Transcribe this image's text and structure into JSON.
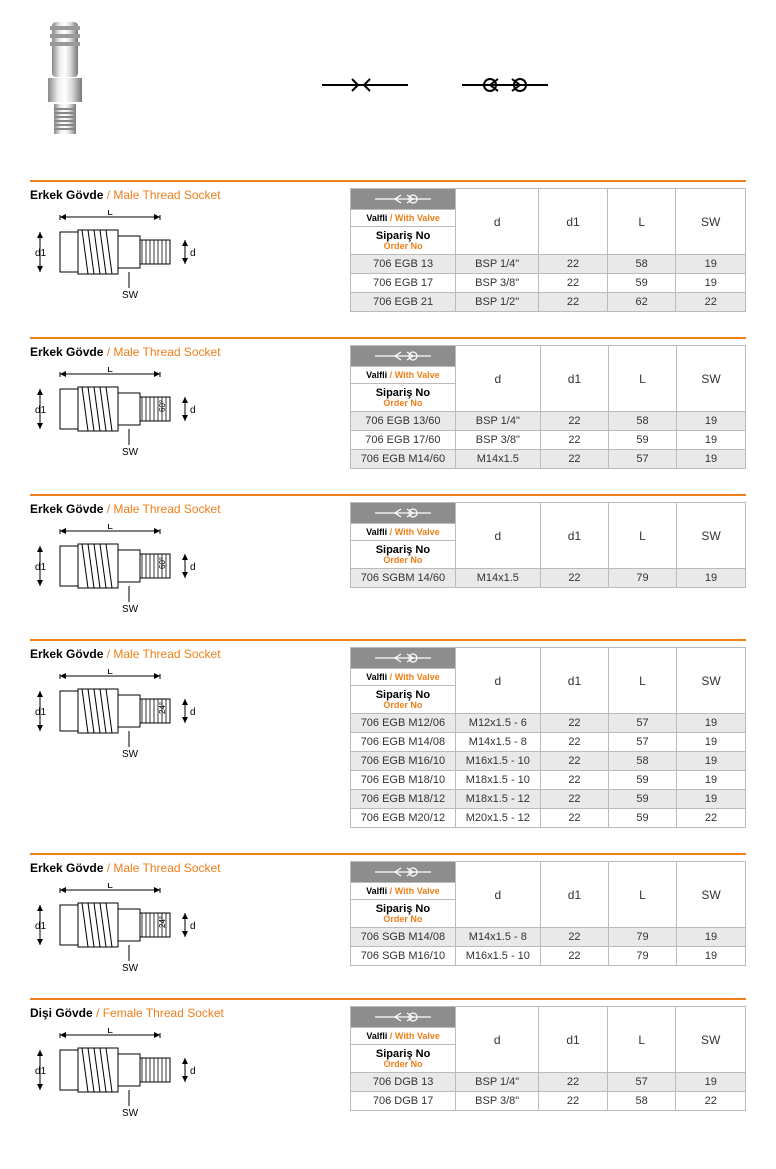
{
  "colors": {
    "accent": "#ef7f1a",
    "header_bg": "#8d8d8d",
    "row_alt": "#e9e9e9",
    "border": "#bbbbbb"
  },
  "labels": {
    "valve_tr": "Valfli",
    "valve_sep": " / ",
    "valve_en": "With Valve",
    "siparis_tr": "Sipariş No",
    "siparis_en": "Order No",
    "cols": [
      "d",
      "d1",
      "L",
      "SW"
    ]
  },
  "sections": [
    {
      "title_tr": "Erkek Gövde",
      "title_en": "Male Thread Socket",
      "diagram_angle": "",
      "rows": [
        [
          "706 EGB 13",
          "BSP 1/4\"",
          "22",
          "58",
          "19"
        ],
        [
          "706 EGB 17",
          "BSP 3/8\"",
          "22",
          "59",
          "19"
        ],
        [
          "706 EGB 21",
          "BSP 1/2\"",
          "22",
          "62",
          "22"
        ]
      ]
    },
    {
      "title_tr": "Erkek Gövde",
      "title_en": "Male Thread Socket",
      "diagram_angle": "60°",
      "rows": [
        [
          "706 EGB 13/60",
          "BSP 1/4\"",
          "22",
          "58",
          "19"
        ],
        [
          "706 EGB 17/60",
          "BSP 3/8\"",
          "22",
          "59",
          "19"
        ],
        [
          "706 EGB M14/60",
          "M14x1.5",
          "22",
          "57",
          "19"
        ]
      ]
    },
    {
      "title_tr": "Erkek Gövde",
      "title_en": "Male Thread Socket",
      "diagram_angle": "60°",
      "rows": [
        [
          "706 SGBM 14/60",
          "M14x1.5",
          "22",
          "79",
          "19"
        ]
      ]
    },
    {
      "title_tr": "Erkek Gövde",
      "title_en": "Male Thread Socket",
      "diagram_angle": "24°",
      "rows": [
        [
          "706 EGB M12/06",
          "M12x1.5 - 6",
          "22",
          "57",
          "19"
        ],
        [
          "706 EGB M14/08",
          "M14x1.5 - 8",
          "22",
          "57",
          "19"
        ],
        [
          "706 EGB M16/10",
          "M16x1.5 - 10",
          "22",
          "58",
          "19"
        ],
        [
          "706 EGB M18/10",
          "M18x1.5 - 10",
          "22",
          "59",
          "19"
        ],
        [
          "706 EGB M18/12",
          "M18x1.5 - 12",
          "22",
          "59",
          "19"
        ],
        [
          "706 EGB M20/12",
          "M20x1.5 - 12",
          "22",
          "59",
          "22"
        ]
      ]
    },
    {
      "title_tr": "Erkek Gövde",
      "title_en": "Male Thread Socket",
      "diagram_angle": "24°",
      "rows": [
        [
          "706 SGB M14/08",
          "M14x1.5 - 8",
          "22",
          "79",
          "19"
        ],
        [
          "706 SGB M16/10",
          "M16x1.5 - 10",
          "22",
          "79",
          "19"
        ]
      ]
    },
    {
      "title_tr": "Dişi Gövde",
      "title_en": "Female Thread Socket",
      "diagram_angle": "",
      "rows": [
        [
          "706 DGB 13",
          "BSP 1/4\"",
          "22",
          "57",
          "19"
        ],
        [
          "706 DGB 17",
          "BSP 3/8\"",
          "22",
          "58",
          "22"
        ]
      ]
    }
  ]
}
